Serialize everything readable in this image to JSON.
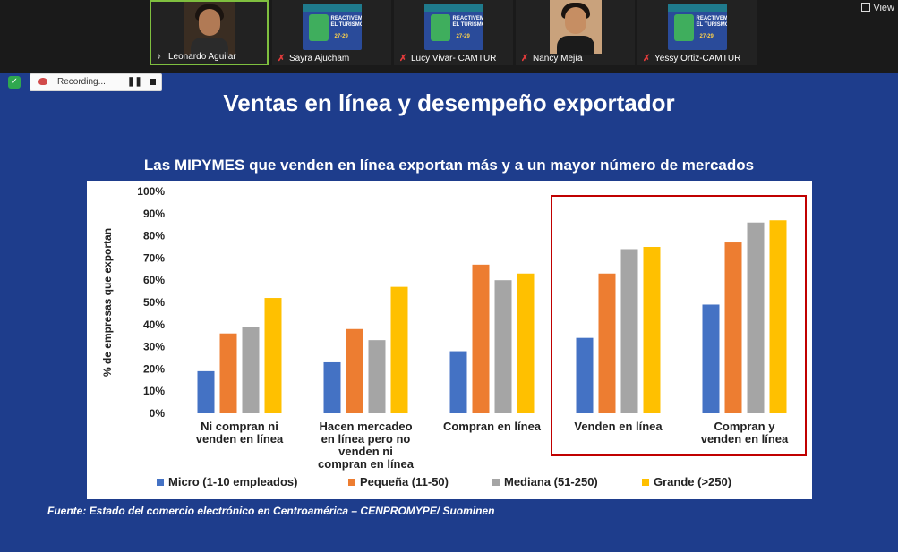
{
  "meeting": {
    "participants": [
      {
        "name": "Leonardo Aguilar",
        "type": "camera",
        "muted": false
      },
      {
        "name": "Sayra Ajucham",
        "type": "logo",
        "muted": true
      },
      {
        "name": "Lucy Vivar- CAMTUR",
        "type": "logo",
        "muted": true
      },
      {
        "name": "Nancy Mejía",
        "type": "camera",
        "muted": true
      },
      {
        "name": "Yessy Ortiz-CAMTUR",
        "type": "logo",
        "muted": true
      }
    ],
    "logo_text_1": "REACTIVEMOS EL TURISMO",
    "logo_text_2": "27-29",
    "view_label": "View",
    "recording_label": "Recording...",
    "pause_label": "❚❚"
  },
  "slide": {
    "title": "Ventas en línea y desempeño exportador",
    "subtitle": "Las MIPYMES que venden en línea exportan más y a un mayor número de mercados",
    "source": "Fuente: Estado del comercio electrónico en Centroamérica – CENPROMYPE/ Suominen"
  },
  "chart_data": {
    "type": "bar",
    "categories": [
      [
        "Ni compran ni",
        "venden en línea"
      ],
      [
        "Hacen mercadeo",
        "en línea pero no",
        "venden ni",
        "compran en línea"
      ],
      [
        "Compran en línea"
      ],
      [
        "Venden en línea"
      ],
      [
        "Compran y",
        "venden en línea"
      ]
    ],
    "series": [
      {
        "name": "Micro (1-10 empleados)",
        "color": "#4472c4",
        "values": [
          19,
          23,
          28,
          34,
          49
        ]
      },
      {
        "name": "Pequeña (11-50)",
        "color": "#ed7d31",
        "values": [
          36,
          38,
          67,
          63,
          77
        ]
      },
      {
        "name": "Mediana (51-250)",
        "color": "#a5a5a5",
        "values": [
          39,
          33,
          60,
          74,
          86
        ]
      },
      {
        "name": "Grande (>250)",
        "color": "#ffc000",
        "values": [
          52,
          57,
          63,
          75,
          87
        ]
      }
    ],
    "ylabel": "% de empresas que exportan",
    "ylim": [
      0,
      100
    ],
    "yticks": [
      "0%",
      "10%",
      "20%",
      "30%",
      "40%",
      "50%",
      "60%",
      "70%",
      "80%",
      "90%",
      "100%"
    ],
    "highlight": [
      3,
      4
    ],
    "highlight_color": "#c00000",
    "legend_position": "bottom"
  }
}
